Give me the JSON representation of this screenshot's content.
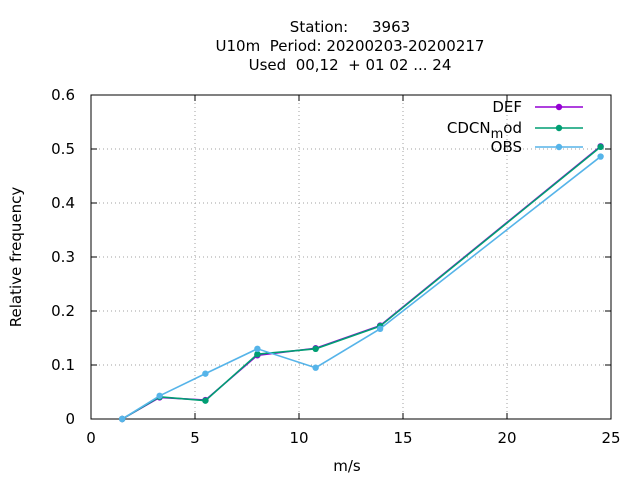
{
  "chart_data": {
    "type": "line",
    "title_lines": [
      "Station:     3963",
      "U10m  Period: 20200203-20200217",
      "Used  00,12  + 01 02 ... 24"
    ],
    "xlabel": "m/s",
    "ylabel": "Relative frequency",
    "xlim": [
      0,
      25
    ],
    "ylim": [
      0,
      0.6
    ],
    "xticks": [
      0,
      5,
      10,
      15,
      20,
      25
    ],
    "yticks": [
      0,
      0.1,
      0.2,
      0.3,
      0.4,
      0.5,
      0.6
    ],
    "xtick_labels": [
      "0",
      "5",
      "10",
      "15",
      "20",
      "25"
    ],
    "ytick_labels": [
      "0",
      "0.1",
      "0.2",
      "0.3",
      "0.4",
      "0.5",
      "0.6"
    ],
    "grid": true,
    "legend_position": "top-right",
    "series": [
      {
        "name": "DEF",
        "color": "#9400d3",
        "x": [
          1.5,
          3.3,
          5.5,
          8.0,
          10.8,
          13.9,
          24.5
        ],
        "y": [
          0.0,
          0.04,
          0.035,
          0.118,
          0.131,
          0.173,
          0.505
        ]
      },
      {
        "name": "CDCN_mod",
        "color": "#009e73",
        "x": [
          1.5,
          3.3,
          5.5,
          8.0,
          10.8,
          13.9,
          24.5
        ],
        "y": [
          0.0,
          0.041,
          0.034,
          0.12,
          0.13,
          0.172,
          0.504
        ]
      },
      {
        "name": "OBS",
        "color": "#56b4e9",
        "x": [
          1.5,
          3.3,
          5.5,
          8.0,
          10.8,
          13.9,
          24.5
        ],
        "y": [
          0.0,
          0.043,
          0.084,
          0.13,
          0.095,
          0.167,
          0.486
        ]
      }
    ]
  }
}
